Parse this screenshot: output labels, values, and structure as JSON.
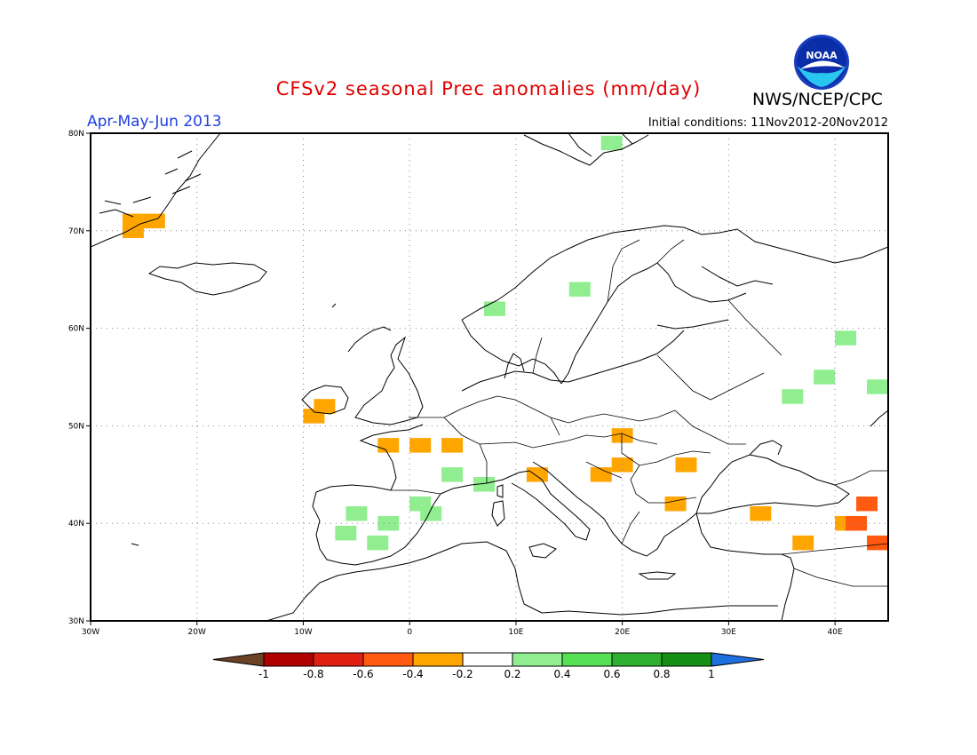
{
  "title": "CFSv2 seasonal Prec anomalies (mm/day)",
  "period": "Apr-May-Jun 2013",
  "initial_conditions": "Initial conditions: 11Nov2012-20Nov2012",
  "agency": "NWS/NCEP/CPC",
  "logo_text": "NOAA",
  "lat_ticks": [
    "80N",
    "70N",
    "60N",
    "50N",
    "40N",
    "30N"
  ],
  "lon_ticks": [
    "30W",
    "20W",
    "10W",
    "0",
    "10E",
    "20E",
    "30E",
    "40E"
  ],
  "colorbar": {
    "labels": [
      "-1",
      "-0.8",
      "-0.6",
      "-0.4",
      "-0.2",
      "0.2",
      "0.4",
      "0.6",
      "0.8",
      "1"
    ],
    "colors": [
      "#6b4226",
      "#b00000",
      "#e02010",
      "#ff5a10",
      "#ffa500",
      "#ffffff",
      "#90ee90",
      "#55e055",
      "#30b030",
      "#159015",
      "#1e6fe0"
    ]
  },
  "map_extent": {
    "lon": [
      -30,
      45
    ],
    "lat": [
      30,
      80
    ]
  },
  "anomaly_cells": [
    {
      "lon": -26,
      "lat": 71,
      "value": -0.3
    },
    {
      "lon": -24,
      "lat": 71,
      "value": -0.3
    },
    {
      "lon": -26,
      "lat": 70,
      "value": -0.3
    },
    {
      "lon": -8,
      "lat": 52,
      "value": -0.3
    },
    {
      "lon": -9,
      "lat": 51,
      "value": -0.3
    },
    {
      "lon": -2,
      "lat": 48,
      "value": -0.3
    },
    {
      "lon": 1,
      "lat": 48,
      "value": -0.3
    },
    {
      "lon": 4,
      "lat": 48,
      "value": -0.3
    },
    {
      "lon": 4,
      "lat": 45,
      "value": 0.3
    },
    {
      "lon": 7,
      "lat": 44,
      "value": 0.3
    },
    {
      "lon": -5,
      "lat": 41,
      "value": 0.3
    },
    {
      "lon": -2,
      "lat": 40,
      "value": 0.3
    },
    {
      "lon": -6,
      "lat": 39,
      "value": 0.3
    },
    {
      "lon": -3,
      "lat": 38,
      "value": 0.3
    },
    {
      "lon": 1,
      "lat": 42,
      "value": 0.3
    },
    {
      "lon": 2,
      "lat": 41,
      "value": 0.3
    },
    {
      "lon": 16,
      "lat": 64,
      "value": 0.3
    },
    {
      "lon": 8,
      "lat": 62,
      "value": 0.3
    },
    {
      "lon": 19,
      "lat": 79,
      "value": 0.3
    },
    {
      "lon": 41,
      "lat": 59,
      "value": 0.3
    },
    {
      "lon": 39,
      "lat": 55,
      "value": 0.3
    },
    {
      "lon": 36,
      "lat": 53,
      "value": 0.3
    },
    {
      "lon": 44,
      "lat": 54,
      "value": 0.3
    },
    {
      "lon": 12,
      "lat": 45,
      "value": -0.3
    },
    {
      "lon": 20,
      "lat": 49,
      "value": -0.3
    },
    {
      "lon": 20,
      "lat": 46,
      "value": -0.3
    },
    {
      "lon": 18,
      "lat": 45,
      "value": -0.3
    },
    {
      "lon": 26,
      "lat": 46,
      "value": -0.3
    },
    {
      "lon": 25,
      "lat": 42,
      "value": -0.3
    },
    {
      "lon": 33,
      "lat": 41,
      "value": -0.3
    },
    {
      "lon": 37,
      "lat": 38,
      "value": -0.3
    },
    {
      "lon": 41,
      "lat": 40,
      "value": -0.3
    },
    {
      "lon": 43,
      "lat": 42,
      "value": -0.5
    },
    {
      "lon": 42,
      "lat": 40,
      "value": -0.5
    },
    {
      "lon": 44,
      "lat": 38,
      "value": -0.5
    }
  ]
}
